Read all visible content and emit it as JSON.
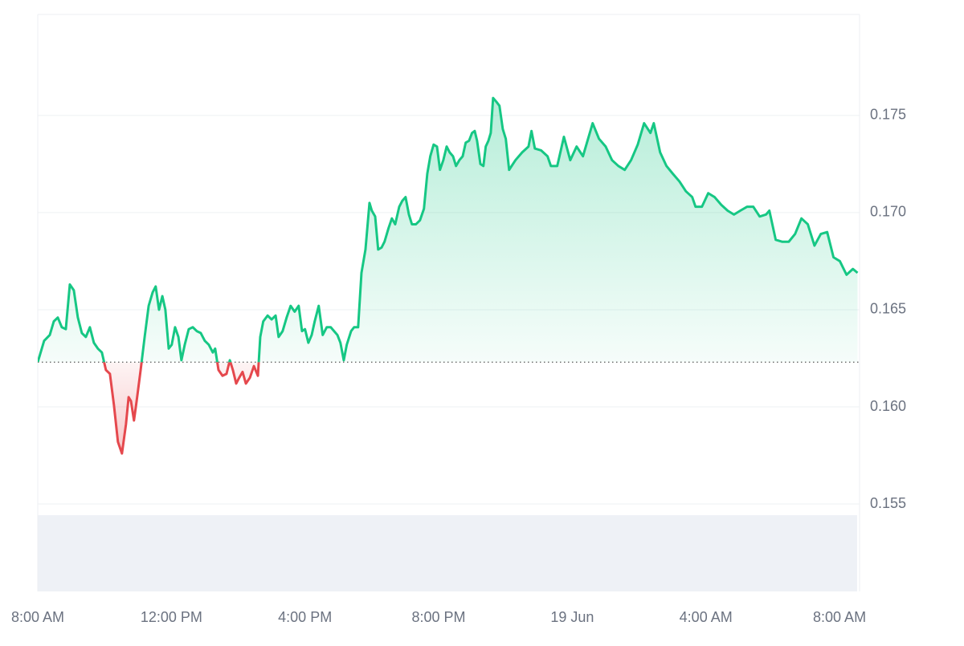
{
  "chart_data": {
    "type": "line",
    "x": [
      0,
      0.19,
      0.36,
      0.48,
      0.6,
      0.72,
      0.84,
      0.96,
      1.08,
      1.2,
      1.32,
      1.44,
      1.56,
      1.68,
      1.8,
      1.92,
      2.04,
      2.16,
      2.28,
      2.4,
      2.52,
      2.64,
      2.72,
      2.79,
      2.88,
      2.96,
      3.08,
      3.2,
      3.32,
      3.44,
      3.53,
      3.63,
      3.73,
      3.82,
      3.92,
      4.01,
      4.11,
      4.21,
      4.3,
      4.4,
      4.52,
      4.64,
      4.76,
      4.88,
      5,
      5.12,
      5.24,
      5.31,
      5.41,
      5.53,
      5.65,
      5.75,
      5.84,
      5.94,
      6.03,
      6.13,
      6.23,
      6.35,
      6.47,
      6.59,
      6.66,
      6.75,
      6.88,
      7,
      7.12,
      7.21,
      7.33,
      7.45,
      7.57,
      7.69,
      7.81,
      7.91,
      8,
      8.1,
      8.2,
      8.29,
      8.41,
      8.53,
      8.65,
      8.77,
      8.87,
      8.97,
      9.06,
      9.16,
      9.25,
      9.38,
      9.47,
      9.59,
      9.69,
      9.81,
      9.93,
      10,
      10.1,
      10.19,
      10.29,
      10.38,
      10.5,
      10.6,
      10.7,
      10.82,
      10.91,
      11.01,
      11.11,
      11.2,
      11.32,
      11.44,
      11.56,
      11.66,
      11.75,
      11.85,
      11.95,
      12.04,
      12.14,
      12.24,
      12.33,
      12.43,
      12.52,
      12.62,
      12.72,
      12.81,
      12.91,
      13,
      13.08,
      13.15,
      13.25,
      13.34,
      13.41,
      13.49,
      13.56,
      13.63,
      13.73,
      13.82,
      13.92,
      14.01,
      14.11,
      14.3,
      14.5,
      14.69,
      14.78,
      14.88,
      15.07,
      15.26,
      15.36,
      15.55,
      15.75,
      15.94,
      16.13,
      16.32,
      16.61,
      16.8,
      17,
      17.19,
      17.38,
      17.57,
      17.76,
      17.96,
      18.15,
      18.34,
      18.44,
      18.63,
      18.82,
      19.01,
      19.21,
      19.4,
      19.59,
      19.69,
      19.88,
      20.07,
      20.26,
      20.46,
      20.65,
      20.84,
      21.03,
      21.23,
      21.42,
      21.61,
      21.8,
      21.9,
      22.09,
      22.28,
      22.48,
      22.67,
      22.86,
      23.05,
      23.25,
      23.44,
      23.63,
      23.82,
      24.01,
      24.21,
      24.4,
      24.54
    ],
    "values": [
      0.1623,
      0.1634,
      0.1637,
      0.1644,
      0.1646,
      0.1641,
      0.164,
      0.1663,
      0.166,
      0.1646,
      0.1638,
      0.1636,
      0.1641,
      0.1633,
      0.163,
      0.1628,
      0.1619,
      0.1617,
      0.1601,
      0.1582,
      0.1576,
      0.1591,
      0.1605,
      0.1603,
      0.1593,
      0.1603,
      0.1619,
      0.1636,
      0.1652,
      0.1659,
      0.1662,
      0.165,
      0.1657,
      0.165,
      0.163,
      0.1632,
      0.1641,
      0.1636,
      0.1624,
      0.1632,
      0.164,
      0.1641,
      0.1639,
      0.1638,
      0.1634,
      0.1632,
      0.1628,
      0.163,
      0.1619,
      0.1616,
      0.1617,
      0.1624,
      0.1619,
      0.1612,
      0.1615,
      0.1618,
      0.1612,
      0.1615,
      0.1621,
      0.1616,
      0.1636,
      0.1644,
      0.1647,
      0.1645,
      0.1647,
      0.1636,
      0.1639,
      0.1646,
      0.1652,
      0.1649,
      0.1652,
      0.1639,
      0.164,
      0.1633,
      0.1637,
      0.1644,
      0.1652,
      0.1637,
      0.1641,
      0.1641,
      0.1639,
      0.1637,
      0.1633,
      0.1624,
      0.1632,
      0.1639,
      0.1641,
      0.1641,
      0.1669,
      0.1681,
      0.1705,
      0.1701,
      0.1698,
      0.1681,
      0.1682,
      0.1685,
      0.1692,
      0.1697,
      0.1694,
      0.1703,
      0.1706,
      0.1708,
      0.1699,
      0.1694,
      0.1694,
      0.1696,
      0.1702,
      0.172,
      0.1729,
      0.1735,
      0.1734,
      0.1722,
      0.1727,
      0.1734,
      0.1731,
      0.1729,
      0.1724,
      0.1727,
      0.1729,
      0.1736,
      0.1737,
      0.1741,
      0.1742,
      0.1737,
      0.1725,
      0.1724,
      0.1734,
      0.1737,
      0.1741,
      0.1759,
      0.1757,
      0.1755,
      0.1743,
      0.1738,
      0.1722,
      0.1727,
      0.1731,
      0.1734,
      0.1742,
      0.1733,
      0.1732,
      0.1729,
      0.1724,
      0.1724,
      0.1739,
      0.1727,
      0.1734,
      0.1729,
      0.1746,
      0.1738,
      0.1734,
      0.1727,
      0.1724,
      0.1722,
      0.1727,
      0.1735,
      0.1746,
      0.1741,
      0.1746,
      0.1731,
      0.1724,
      0.172,
      0.1716,
      0.1711,
      0.1708,
      0.1703,
      0.1703,
      0.171,
      0.1708,
      0.1704,
      0.1701,
      0.1699,
      0.1701,
      0.1703,
      0.1703,
      0.1698,
      0.1699,
      0.1701,
      0.1686,
      0.1685,
      0.1685,
      0.1689,
      0.1697,
      0.1694,
      0.1683,
      0.1689,
      0.169,
      0.1677,
      0.1675,
      0.1668,
      0.1671,
      0.1669
    ],
    "baseline": 0.1623,
    "color_up": "#16c784",
    "color_down": "#e5484d",
    "xlim": [
      0,
      24.6
    ],
    "xticks": [
      {
        "value": 0,
        "label": "8:00 AM"
      },
      {
        "value": 4,
        "label": "12:00 PM"
      },
      {
        "value": 8,
        "label": "4:00 PM"
      },
      {
        "value": 12,
        "label": "8:00 PM"
      },
      {
        "value": 16,
        "label": "19 Jun"
      },
      {
        "value": 20,
        "label": "4:00 AM"
      },
      {
        "value": 24,
        "label": "8:00 AM"
      }
    ],
    "ylim": [
      0.1505,
      0.1802
    ],
    "yticks": [
      0.155,
      {
        "value": 0.16,
        "label": "0.160"
      },
      0.165,
      {
        "value": 0.17,
        "label": "0.170"
      },
      0.175
    ],
    "grid": true
  }
}
